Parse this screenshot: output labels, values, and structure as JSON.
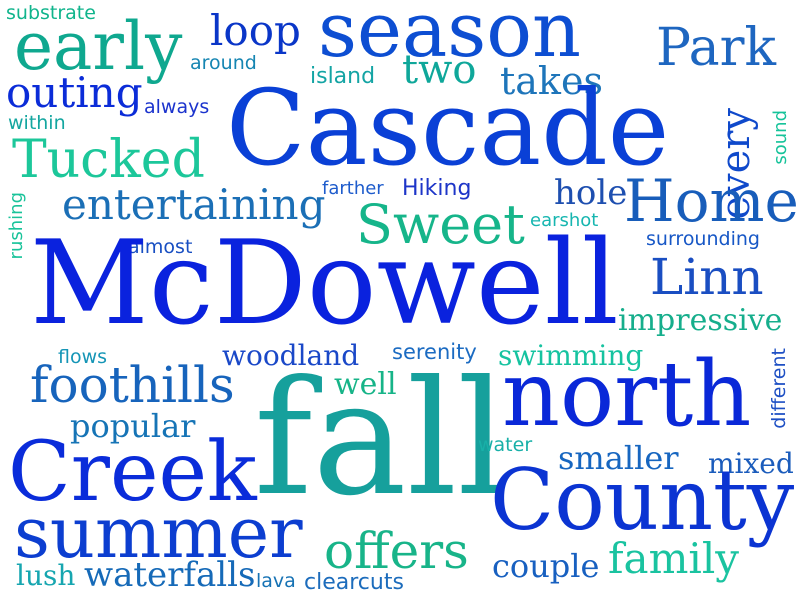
{
  "words": [
    {
      "text": "substrate",
      "color": "#10b48c"
    },
    {
      "text": "early",
      "color": "#0fa88f"
    },
    {
      "text": "loop",
      "color": "#0a36c8"
    },
    {
      "text": "season",
      "color": "#0d4ed2"
    },
    {
      "text": "Park",
      "color": "#1e66c0"
    },
    {
      "text": "around",
      "color": "#1585b2"
    },
    {
      "text": "island",
      "color": "#14a4a4"
    },
    {
      "text": "two",
      "color": "#0fa79a"
    },
    {
      "text": "takes",
      "color": "#1e75ba"
    },
    {
      "text": "outing",
      "color": "#0b2cd8"
    },
    {
      "text": "always",
      "color": "#1b33cd"
    },
    {
      "text": "Cascade",
      "color": "#0a40d6"
    },
    {
      "text": "within",
      "color": "#14a6a0"
    },
    {
      "text": "every",
      "color": "#0f49cb"
    },
    {
      "text": "sound",
      "color": "#16c39a"
    },
    {
      "text": "Tucked",
      "color": "#1cc79a"
    },
    {
      "text": "farther",
      "color": "#1e5ccc"
    },
    {
      "text": "Hiking",
      "color": "#1d35c8"
    },
    {
      "text": "hole",
      "color": "#1e4fb0"
    },
    {
      "text": "Home",
      "color": "#185dba"
    },
    {
      "text": "entertaining",
      "color": "#1b6fb6"
    },
    {
      "text": "Sweet",
      "color": "#16b58a"
    },
    {
      "text": "earshot",
      "color": "#17b6b0"
    },
    {
      "text": "rushing",
      "color": "#19c39a"
    },
    {
      "text": "almost",
      "color": "#174ec2"
    },
    {
      "text": "surrounding",
      "color": "#1757c6"
    },
    {
      "text": "McDowell",
      "color": "#0a22de"
    },
    {
      "text": "Linn",
      "color": "#1a4ec2"
    },
    {
      "text": "impressive",
      "color": "#16ae8c"
    },
    {
      "text": "flows",
      "color": "#1595b6"
    },
    {
      "text": "woodland",
      "color": "#1a48c8"
    },
    {
      "text": "serenity",
      "color": "#1b6bc2"
    },
    {
      "text": "swimming",
      "color": "#16c3a0"
    },
    {
      "text": "foothills",
      "color": "#1764bc"
    },
    {
      "text": "well",
      "color": "#17b488"
    },
    {
      "text": "north",
      "color": "#0a28d8"
    },
    {
      "text": "different",
      "color": "#1d4fc4"
    },
    {
      "text": "popular",
      "color": "#1674b6"
    },
    {
      "text": "fall",
      "color": "#16a09c"
    },
    {
      "text": "water",
      "color": "#18b0a8"
    },
    {
      "text": "smaller",
      "color": "#1766c0"
    },
    {
      "text": "mixed",
      "color": "#1b5cbc"
    },
    {
      "text": "Creek",
      "color": "#0a2cda"
    },
    {
      "text": "County",
      "color": "#0b34d2"
    },
    {
      "text": "summer",
      "color": "#0c3ed0"
    },
    {
      "text": "offers",
      "color": "#18b489"
    },
    {
      "text": "family",
      "color": "#1ac3a0"
    },
    {
      "text": "couple",
      "color": "#1860c0"
    },
    {
      "text": "lush",
      "color": "#17a6b0"
    },
    {
      "text": "waterfalls",
      "color": "#166ab8"
    },
    {
      "text": "lava",
      "color": "#1672b4"
    },
    {
      "text": "clearcuts",
      "color": "#1c6cbc"
    }
  ]
}
